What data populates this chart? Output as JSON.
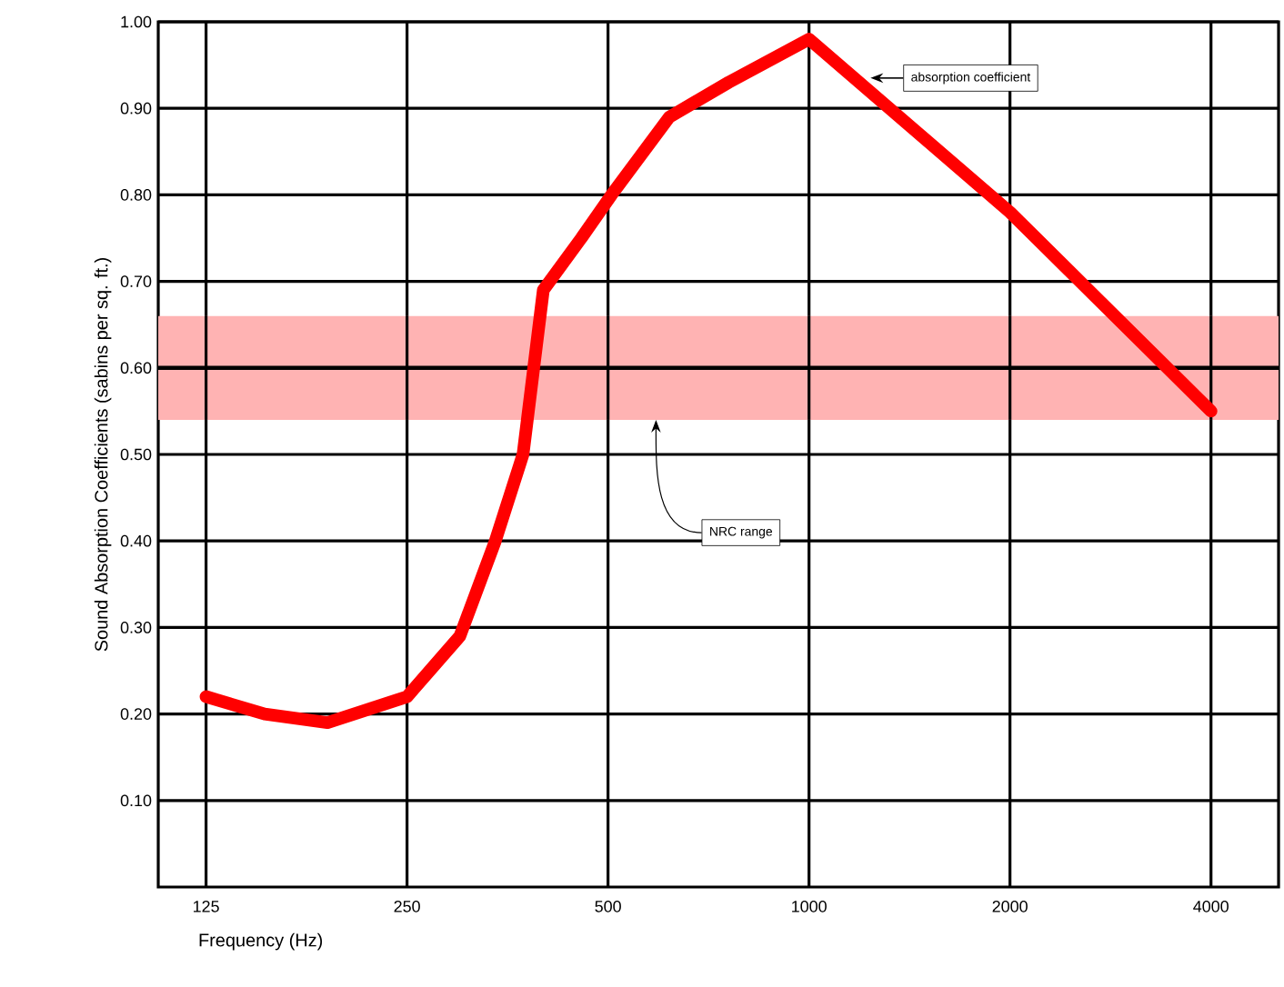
{
  "chart_data": {
    "type": "line",
    "xlabel": "Frequency (Hz)",
    "ylabel": "Sound Absorption Coefficients (sabins per sq. ft.)",
    "x": [
      125,
      153,
      190,
      250,
      300,
      339,
      373,
      400,
      456,
      506,
      618,
      758,
      1000,
      2000,
      4000
    ],
    "series": [
      {
        "name": "absorption coefficient",
        "color": "#ff0000",
        "values": [
          0.22,
          0.2,
          0.19,
          0.22,
          0.29,
          0.4,
          0.5,
          0.69,
          0.75,
          0.8,
          0.89,
          0.93,
          0.98,
          0.78,
          0.55
        ]
      }
    ],
    "log": "x",
    "xlim": [
      106,
      5050
    ],
    "xticks": [
      125,
      250,
      500,
      1000,
      2000,
      4000
    ],
    "ylim": [
      0,
      1.0
    ],
    "yticks": [
      {
        "value": 0.1,
        "label": "0.10"
      },
      {
        "value": 0.2,
        "label": "0.20"
      },
      {
        "value": 0.3,
        "label": "0.30"
      },
      {
        "value": 0.4,
        "label": "0.40"
      },
      {
        "value": 0.5,
        "label": "0.50"
      },
      {
        "value": 0.6,
        "label": "0.60"
      },
      {
        "value": 0.7,
        "label": "0.70"
      },
      {
        "value": 0.8,
        "label": "0.80"
      },
      {
        "value": 0.9,
        "label": "0.90"
      },
      {
        "value": 1.0,
        "label": "1.00"
      }
    ],
    "grid": true,
    "bands": [
      {
        "axis": "y",
        "from": 0.54,
        "to": 0.66,
        "label": "NRC range",
        "color": "#ffb3b3"
      }
    ],
    "ref_lines": [
      {
        "axis": "y",
        "value": 0.6,
        "color": "#000000"
      }
    ]
  }
}
